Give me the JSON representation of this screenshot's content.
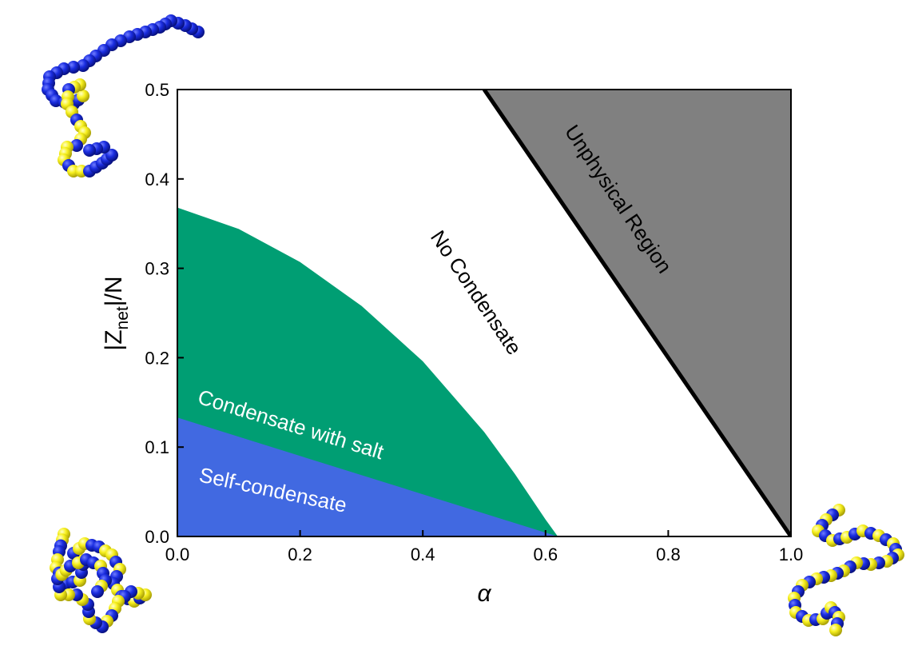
{
  "chart_data": {
    "type": "area",
    "title": "",
    "xlabel": "α",
    "ylabel": {
      "pre": "|Z",
      "sub": "net",
      "post": "|/N"
    },
    "xlim": [
      0,
      1
    ],
    "ylim": [
      0,
      0.5
    ],
    "xticks": [
      "0.0",
      "0.2",
      "0.4",
      "0.6",
      "0.8",
      "1.0"
    ],
    "yticks": [
      "0.0",
      "0.1",
      "0.2",
      "0.3",
      "0.4",
      "0.5"
    ],
    "grid": false,
    "regions": [
      {
        "name": "Self-condensate",
        "color": "#4169e1",
        "text_color": "#ffffff",
        "boundary": [
          [
            0,
            0.133
          ],
          [
            0.62,
            0
          ]
        ]
      },
      {
        "name": "Condensate with salt",
        "color": "#009e73",
        "text_color": "#ffffff",
        "boundary": [
          [
            0,
            0.368
          ],
          [
            0.1,
            0.344
          ],
          [
            0.2,
            0.307
          ],
          [
            0.3,
            0.258
          ],
          [
            0.4,
            0.196
          ],
          [
            0.5,
            0.117
          ],
          [
            0.55,
            0.07
          ],
          [
            0.6,
            0.019
          ],
          [
            0.62,
            0
          ]
        ]
      },
      {
        "name": "No Condensate",
        "color": "#ffffff",
        "text_color": "#000000"
      },
      {
        "name": "Unphysical Region",
        "color": "#808080",
        "text_color": "#000000",
        "boundary": [
          [
            0.5,
            0.5
          ],
          [
            1.0,
            0
          ]
        ]
      }
    ]
  },
  "colors": {
    "bead_blue": "#1428d2",
    "bead_yellow": "#f5f014"
  },
  "icons": {
    "chain_top_left": "polymer-chain-blocky-icon",
    "chain_bottom_left": "polymer-chain-collapsed-icon",
    "chain_bottom_right": "polymer-chain-alternating-icon"
  }
}
